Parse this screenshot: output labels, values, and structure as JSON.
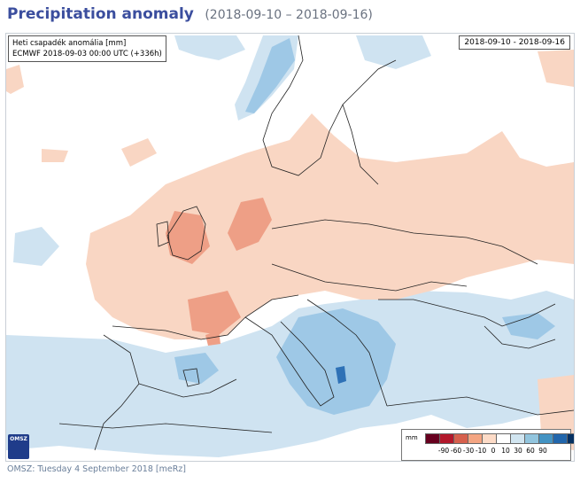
{
  "header": {
    "title": "Precipitation anomaly",
    "date_range": "(2018-09-10 – 2018-09-16)"
  },
  "map": {
    "info_line1": "Heti csapadék anomália [mm]",
    "info_line2": "ECMWF 2018-09-03 00:00 UTC (+336h)",
    "date_box": "2018-09-10 - 2018-09-16",
    "logo_text": "OMSZ",
    "colors": {
      "sea_background": "#ffffff",
      "dry_light": "#f9d6c3",
      "dry_medium": "#ee9f86",
      "wet_light": "#cfe3f1",
      "wet_medium": "#9ec8e6",
      "wet_strong": "#2e71b6",
      "border_line": "#222222"
    }
  },
  "legend": {
    "unit": "mm",
    "colors": [
      "#67001f",
      "#b2182b",
      "#d6604d",
      "#f4a582",
      "#fddbc7",
      "#ffffff",
      "#d1e5f0",
      "#92c5de",
      "#4393c3",
      "#2166ac",
      "#053061"
    ],
    "ticks": [
      "-90",
      "-60",
      "-30",
      "-10",
      "0",
      "10",
      "30",
      "60",
      "90"
    ]
  },
  "footer": {
    "text": "OMSZ: Tuesday 4 September 2018  [meRz]"
  }
}
